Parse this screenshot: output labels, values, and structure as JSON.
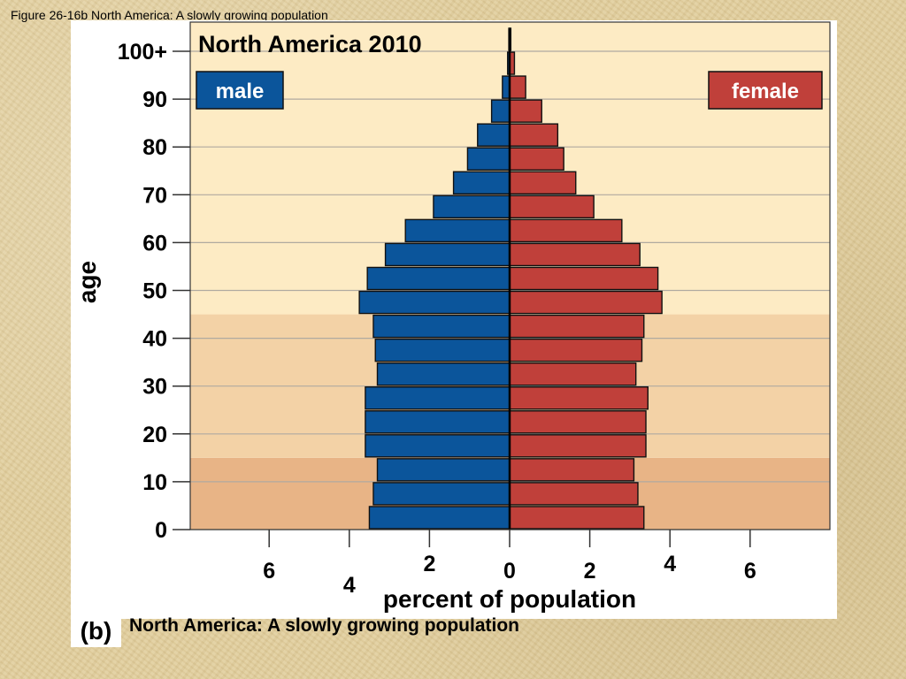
{
  "caption_top": "Figure 26-16b North America: A slowly growing population",
  "figure_label": "(b)",
  "caption_bottom": "North America: A slowly growing population",
  "chart_data": {
    "type": "bar",
    "orientation": "horizontal-population-pyramid",
    "title": "North America 2010",
    "xlabel": "percent of population",
    "ylabel": "age",
    "xlim": [
      -8,
      8
    ],
    "x_ticks": [
      -6,
      -4,
      -2,
      0,
      2,
      4,
      6
    ],
    "x_tick_labels": [
      "6",
      "4",
      "2",
      "0",
      "2",
      "4",
      "6"
    ],
    "y_ticks": [
      0,
      10,
      20,
      30,
      40,
      50,
      60,
      70,
      80,
      90,
      100
    ],
    "y_tick_labels": [
      "0",
      "10",
      "20",
      "30",
      "40",
      "50",
      "60",
      "70",
      "80",
      "90",
      "100+"
    ],
    "grid": true,
    "age_groups": [
      "0-4",
      "5-9",
      "10-14",
      "15-19",
      "20-24",
      "25-29",
      "30-34",
      "35-39",
      "40-44",
      "45-49",
      "50-54",
      "55-59",
      "60-64",
      "65-69",
      "70-74",
      "75-79",
      "80-84",
      "85-89",
      "90-94",
      "95-99",
      "100+"
    ],
    "series": [
      {
        "name": "male",
        "color": "#0b559b",
        "values": [
          3.5,
          3.4,
          3.3,
          3.6,
          3.6,
          3.6,
          3.3,
          3.35,
          3.4,
          3.75,
          3.55,
          3.1,
          2.6,
          1.9,
          1.4,
          1.05,
          0.8,
          0.45,
          0.18,
          0.05,
          0.02
        ]
      },
      {
        "name": "female",
        "color": "#c0403a",
        "values": [
          3.35,
          3.2,
          3.1,
          3.4,
          3.4,
          3.45,
          3.15,
          3.3,
          3.35,
          3.8,
          3.7,
          3.25,
          2.8,
          2.1,
          1.65,
          1.35,
          1.2,
          0.8,
          0.4,
          0.12,
          0.03
        ]
      }
    ],
    "bands": [
      {
        "y_range": [
          0,
          15
        ],
        "color": "#e8b486"
      },
      {
        "y_range": [
          15,
          45
        ],
        "color": "#f3d2a6"
      },
      {
        "y_range": [
          45,
          100
        ],
        "color": "#fdebc4"
      }
    ]
  }
}
